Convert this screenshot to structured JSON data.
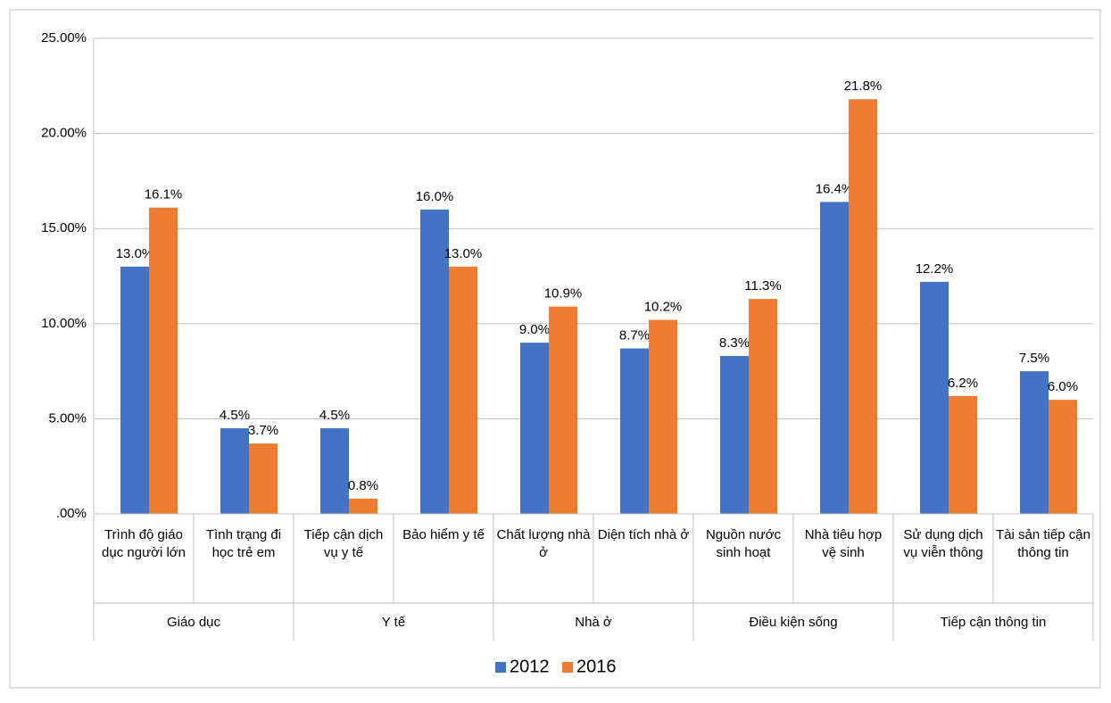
{
  "chart_data": {
    "type": "bar",
    "groups": [
      {
        "name": "Giáo dục",
        "categories": [
          "Trình độ giáo dục người lớn",
          "Tình trạng đi học trẻ em"
        ]
      },
      {
        "name": "Y tế",
        "categories": [
          "Tiếp cận dịch vụ y tế",
          "Bảo hiểm y tế"
        ]
      },
      {
        "name": "Nhà ở",
        "categories": [
          "Chất lượng nhà ở",
          "Diện tích nhà ở"
        ]
      },
      {
        "name": "Điều kiện sống",
        "categories": [
          "Nguồn nước sinh hoạt",
          "Nhà tiêu hợp vệ sinh"
        ]
      },
      {
        "name": "Tiếp cận thông tin",
        "categories": [
          "Sử dụng dịch vụ viễn thông",
          "Tài sản tiếp cận thông tin"
        ]
      }
    ],
    "series": [
      {
        "name": "2012",
        "color": "#4472c4",
        "values": [
          13.0,
          4.5,
          4.5,
          16.0,
          9.0,
          8.7,
          8.3,
          16.4,
          12.2,
          7.5
        ],
        "value_labels": [
          "13.0%",
          "4.5%",
          "4.5%",
          "16.0%",
          "9.0%",
          "8.7%",
          "8.3%",
          "16.4%",
          "12.2%",
          "7.5%"
        ]
      },
      {
        "name": "2016",
        "color": "#ed7d31",
        "values": [
          16.1,
          3.7,
          0.8,
          13.0,
          10.9,
          10.2,
          11.3,
          21.8,
          6.2,
          6.0
        ],
        "value_labels": [
          "16.1%",
          "3.7%",
          "0.8%",
          "13.0%",
          "10.9%",
          "10.2%",
          "11.3%",
          "21.8%",
          "6.2%",
          "6.0%"
        ]
      }
    ],
    "ylim": [
      0,
      25
    ],
    "yticks": [
      {
        "value": 0,
        "label": ".00%"
      },
      {
        "value": 5,
        "label": "5.00%"
      },
      {
        "value": 10,
        "label": "10.00%"
      },
      {
        "value": 15,
        "label": "15.00%"
      },
      {
        "value": 20,
        "label": "20.00%"
      },
      {
        "value": 25,
        "label": "25.00%"
      }
    ],
    "grid": true,
    "legend": "bottom"
  }
}
